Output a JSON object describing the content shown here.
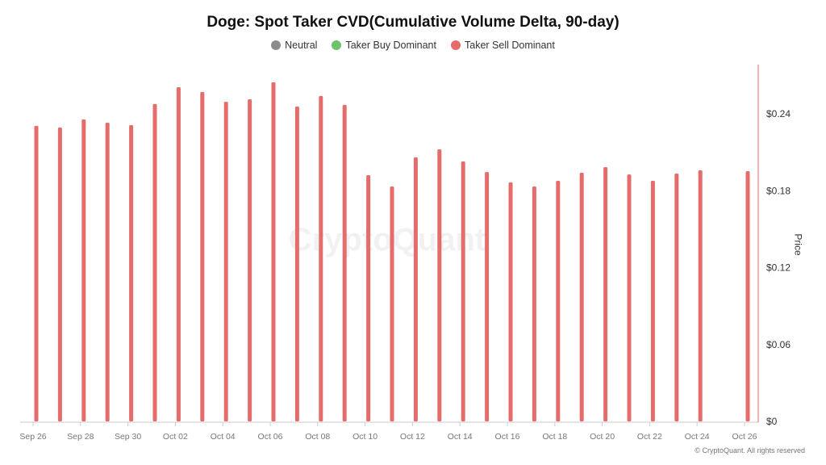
{
  "chart_data": {
    "type": "bar",
    "title": "Doge: Spot Taker CVD(Cumulative Volume Delta, 90-day)",
    "legend": [
      {
        "label": "Neutral",
        "color": "#8c8c8c"
      },
      {
        "label": "Taker Buy Dominant",
        "color": "#6cc36c"
      },
      {
        "label": "Taker Sell Dominant",
        "color": "#e66b6b"
      }
    ],
    "legend_placement": "top-center",
    "ylabel": "Price",
    "y_axis_side": "right",
    "ylim": [
      0,
      0.28
    ],
    "yticks": [
      0,
      0.06,
      0.12,
      0.18,
      0.24
    ],
    "ytick_labels": [
      "$0",
      "$0.06",
      "$0.12",
      "$0.18",
      "$0.24"
    ],
    "xtick_labels": [
      "Sep 26",
      "Sep 28",
      "Sep 30",
      "Oct 02",
      "Oct 04",
      "Oct 06",
      "Oct 08",
      "Oct 10",
      "Oct 12",
      "Oct 14",
      "Oct 16",
      "Oct 18",
      "Oct 20",
      "Oct 22",
      "Oct 24",
      "Oct 26"
    ],
    "categories": [
      "Sep 26",
      "Sep 27",
      "Sep 28",
      "Sep 29",
      "Sep 30",
      "Oct 01",
      "Oct 02",
      "Oct 03",
      "Oct 04",
      "Oct 05",
      "Oct 06",
      "Oct 07",
      "Oct 08",
      "Oct 09",
      "Oct 10",
      "Oct 11",
      "Oct 12",
      "Oct 13",
      "Oct 14",
      "Oct 15",
      "Oct 16",
      "Oct 17",
      "Oct 18",
      "Oct 19",
      "Oct 20",
      "Oct 21",
      "Oct 22",
      "Oct 23",
      "Oct 24",
      "Oct 25",
      "Oct 26"
    ],
    "values": [
      0.2306,
      0.2293,
      0.2356,
      0.2331,
      0.2312,
      0.2476,
      0.2608,
      0.257,
      0.2494,
      0.2513,
      0.2646,
      0.2457,
      0.2539,
      0.2469,
      0.1921,
      0.1833,
      0.206,
      0.2123,
      0.2028,
      0.1946,
      0.1865,
      0.1833,
      0.1877,
      0.194,
      0.1984,
      0.1927,
      0.1877,
      0.1934,
      0.1959,
      null,
      0.1953
    ],
    "bar_color": "#e66b6b",
    "grid": false
  },
  "watermark": "CryptoQuant",
  "copyright": "© CryptoQuant. All rights reserved"
}
